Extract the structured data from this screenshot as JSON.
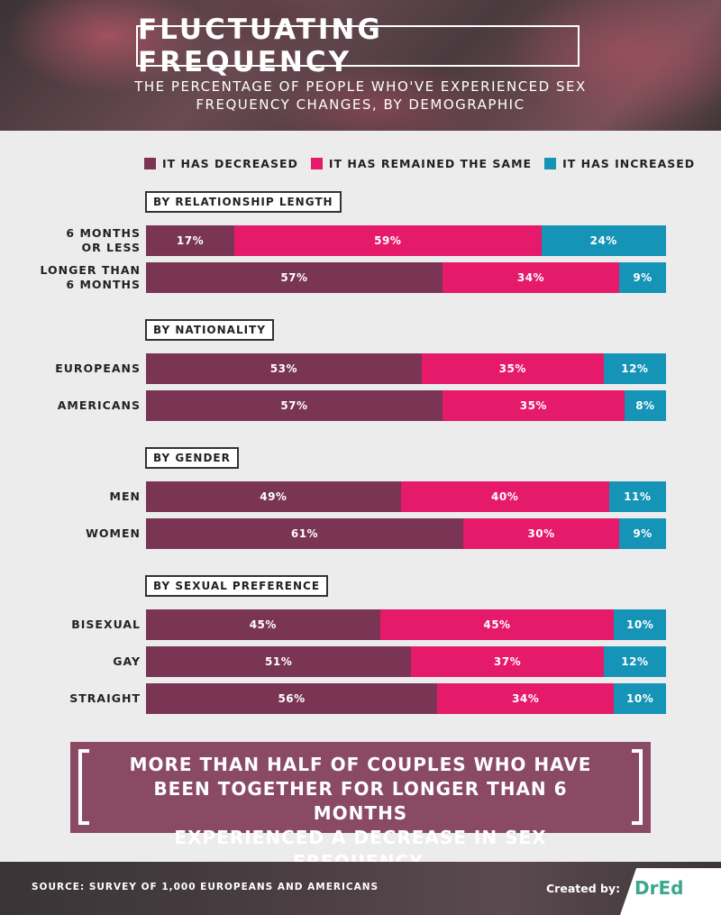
{
  "header": {
    "title": "FLUCTUATING FREQUENCY",
    "subtitle_line1": "THE PERCENTAGE OF PEOPLE WHO'VE EXPERIENCED SEX",
    "subtitle_line2": "FREQUENCY CHANGES, BY DEMOGRAPHIC"
  },
  "colors": {
    "decreased": "#7a3454",
    "same": "#e61a6a",
    "increased": "#1594b7",
    "callout_bg": "#8a4a63",
    "brand": "#3aa88a"
  },
  "chart_data": {
    "type": "bar",
    "orientation": "horizontal",
    "stacked": true,
    "unit": "%",
    "legend": [
      "IT HAS DECREASED",
      "IT HAS REMAINED THE SAME",
      "IT HAS INCREASED"
    ],
    "legend_position": "top",
    "groups": [
      {
        "label": "BY RELATIONSHIP LENGTH",
        "rows": [
          {
            "label_lines": [
              "6 MONTHS",
              "OR LESS"
            ],
            "values": [
              17,
              59,
              24
            ]
          },
          {
            "label_lines": [
              "LONGER THAN",
              "6 MONTHS"
            ],
            "values": [
              57,
              34,
              9
            ]
          }
        ]
      },
      {
        "label": "BY NATIONALITY",
        "rows": [
          {
            "label_lines": [
              "EUROPEANS"
            ],
            "values": [
              53,
              35,
              12
            ]
          },
          {
            "label_lines": [
              "AMERICANS"
            ],
            "values": [
              57,
              35,
              8
            ]
          }
        ]
      },
      {
        "label": "BY GENDER",
        "rows": [
          {
            "label_lines": [
              "MEN"
            ],
            "values": [
              49,
              40,
              11
            ]
          },
          {
            "label_lines": [
              "WOMEN"
            ],
            "values": [
              61,
              30,
              9
            ]
          }
        ]
      },
      {
        "label": "BY SEXUAL PREFERENCE",
        "rows": [
          {
            "label_lines": [
              "BISEXUAL"
            ],
            "values": [
              45,
              45,
              10
            ]
          },
          {
            "label_lines": [
              "GAY"
            ],
            "values": [
              51,
              37,
              12
            ]
          },
          {
            "label_lines": [
              "STRAIGHT"
            ],
            "values": [
              56,
              34,
              10
            ]
          }
        ]
      }
    ]
  },
  "callout": {
    "line1": "MORE THAN HALF OF COUPLES WHO HAVE",
    "line2": "BEEN TOGETHER FOR LONGER THAN 6 MONTHS",
    "line3": "EXPERIENCED A DECREASE IN SEX FREQUENCY."
  },
  "footer": {
    "source": "SOURCE: SURVEY OF 1,000 EUROPEANS AND AMERICANS",
    "created_by": "Created by:",
    "brand": "DrEd"
  }
}
